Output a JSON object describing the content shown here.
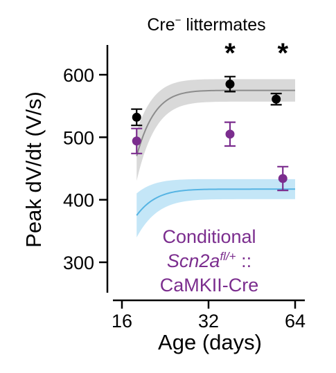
{
  "chart_data": {
    "type": "scatter",
    "title": "Cre⁻ littermates",
    "title_main": "Cre",
    "title_sup": "−",
    "title_rest": " littermates",
    "xlabel": "Age (days)",
    "ylabel": "Peak dV/dt (V/s)",
    "x_scale": "log2",
    "xlim": [
      16,
      64
    ],
    "ylim": [
      260,
      650
    ],
    "x_ticks": [
      16,
      32,
      64
    ],
    "x_tick_labels": [
      "16",
      "32",
      "64"
    ],
    "y_ticks": [
      300,
      400,
      500,
      600
    ],
    "y_tick_labels": [
      "300",
      "400",
      "500",
      "600"
    ],
    "grid": false,
    "colors": {
      "cre_neg": "#000000",
      "conditional": "#7b2d8e",
      "fit_gray": "#8c8c8c",
      "band_gray": "#d9d9d9",
      "fit_blue": "#56b4e3",
      "band_blue": "#c4e6f7"
    },
    "series": [
      {
        "name": "Cre⁻ littermates",
        "color_key": "cre_neg",
        "points": [
          {
            "x": 18,
            "y": 532,
            "err": 13
          },
          {
            "x": 38,
            "y": 585,
            "err": 12
          },
          {
            "x": 55,
            "y": 561,
            "err": 9
          }
        ]
      },
      {
        "name": "Conditional Scn2a fl/+ :: CaMKII-Cre",
        "color_key": "conditional",
        "points": [
          {
            "x": 18,
            "y": 494,
            "err": 20
          },
          {
            "x": 38,
            "y": 505,
            "err": 19
          },
          {
            "x": 58,
            "y": 434,
            "err": 19
          }
        ]
      }
    ],
    "fits": [
      {
        "color_key": "fit_gray",
        "band_key": "band_gray",
        "x_start": 18,
        "x_end": 64,
        "y0": 470,
        "y_inf": 575,
        "tau": 2.6,
        "band": 18
      },
      {
        "color_key": "fit_blue",
        "band_key": "band_blue",
        "x_start": 18,
        "x_end": 64,
        "y0": 375,
        "y_inf": 417,
        "tau": 2.8,
        "band": 16
      }
    ],
    "annotations": [
      {
        "text": "*",
        "x": 38
      },
      {
        "text": "*",
        "x": 58
      }
    ],
    "labels": {
      "conditional_line1": "Conditional",
      "conditional_gene": "Scn2a",
      "conditional_sup": "fl/+",
      "conditional_sep": " ::",
      "conditional_line3": "CaMKII-Cre"
    }
  }
}
